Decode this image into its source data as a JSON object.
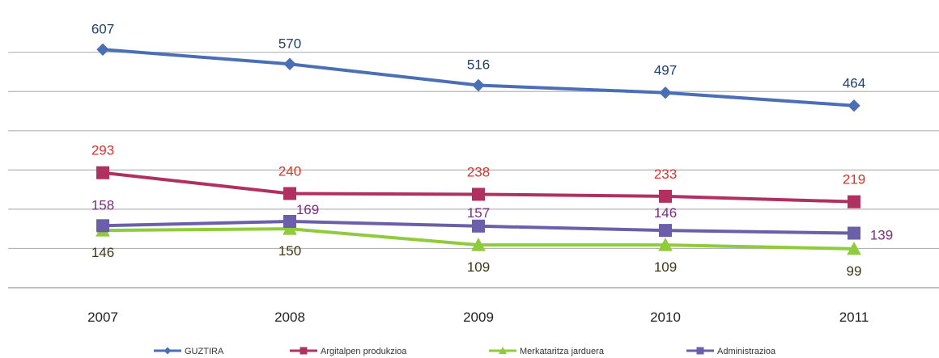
{
  "chart_data": {
    "type": "line",
    "title": "",
    "xlabel": "",
    "ylabel": "",
    "categories": [
      "2007",
      "2008",
      "2009",
      "2010",
      "2011"
    ],
    "ylim": [
      0,
      700
    ],
    "grid": true,
    "legend_position": "bottom",
    "series": [
      {
        "name": "GUZTIRA",
        "values": [
          607,
          570,
          516,
          497,
          464
        ],
        "color": "#4A6FB5",
        "marker": "diamond",
        "label_color": "#1F3F6B"
      },
      {
        "name": "Argitalpen produkzioa",
        "values": [
          293,
          240,
          238,
          233,
          219
        ],
        "color": "#B03060",
        "marker": "square",
        "label_color": "#E0302C"
      },
      {
        "name": "Merkataritza jarduera",
        "values": [
          146,
          150,
          109,
          109,
          99
        ],
        "color": "#8FCB3B",
        "marker": "triangle",
        "label_color": "#3A3A16"
      },
      {
        "name": "Administrazioa",
        "values": [
          158,
          169,
          157,
          146,
          139
        ],
        "color": "#6A5FA8",
        "marker": "square",
        "label_color": "#7B2C7E"
      }
    ]
  }
}
